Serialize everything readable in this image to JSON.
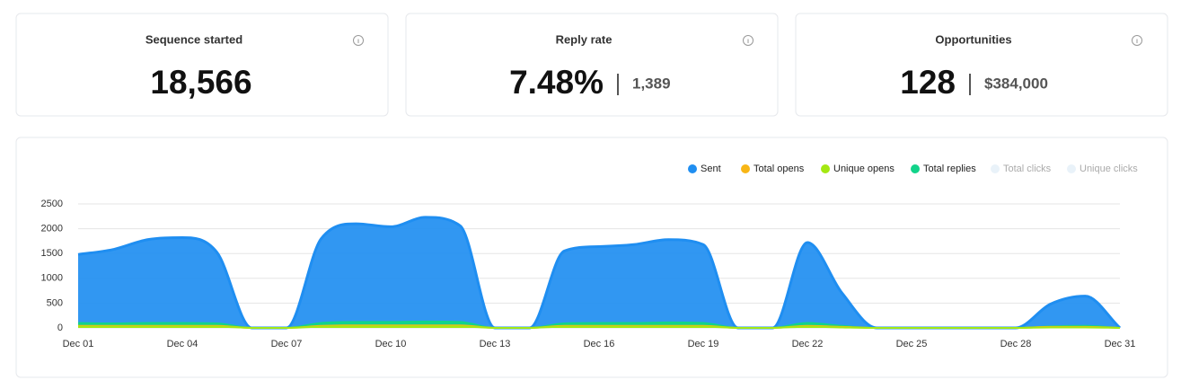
{
  "cards": [
    {
      "title": "Sequence started",
      "value": "18,566"
    },
    {
      "title": "Reply rate",
      "value": "7.48%",
      "secondary": "1,389"
    },
    {
      "title": "Opportunities",
      "value": "128",
      "secondary": "$384,000"
    }
  ],
  "chart_data": {
    "type": "area",
    "categories": [
      "Dec 01",
      null,
      null,
      "Dec 04",
      null,
      null,
      "Dec 07",
      null,
      null,
      "Dec 10",
      null,
      null,
      "Dec 13",
      null,
      null,
      "Dec 16",
      null,
      null,
      "Dec 19",
      null,
      null,
      "Dec 22",
      null,
      null,
      "Dec 25",
      null,
      null,
      "Dec 28",
      null,
      null,
      "Dec 31"
    ],
    "series": [
      {
        "name": "Sent",
        "color": "#1f8ef1",
        "values": [
          1480,
          1580,
          1780,
          1820,
          1520,
          0,
          0,
          1800,
          2100,
          2040,
          2230,
          2060,
          0,
          0,
          1550,
          1640,
          1680,
          1780,
          1680,
          0,
          0,
          1720,
          700,
          0,
          0,
          0,
          0,
          0,
          480,
          640,
          0
        ]
      },
      {
        "name": "Total opens",
        "color": "#f8b616",
        "values": [
          40,
          40,
          40,
          40,
          40,
          0,
          0,
          40,
          50,
          50,
          50,
          50,
          0,
          0,
          40,
          40,
          40,
          40,
          40,
          0,
          0,
          40,
          20,
          0,
          0,
          0,
          0,
          0,
          20,
          20,
          0
        ]
      },
      {
        "name": "Unique opens",
        "color": "#a4e812",
        "values": [
          25,
          25,
          25,
          25,
          25,
          0,
          0,
          25,
          30,
          30,
          30,
          30,
          0,
          0,
          25,
          25,
          25,
          25,
          25,
          0,
          0,
          25,
          10,
          0,
          0,
          0,
          0,
          0,
          10,
          10,
          0
        ]
      },
      {
        "name": "Total replies",
        "color": "#12d38a",
        "values": [
          100,
          90,
          100,
          100,
          90,
          0,
          0,
          100,
          120,
          120,
          130,
          120,
          0,
          0,
          90,
          100,
          100,
          110,
          100,
          0,
          0,
          100,
          40,
          0,
          0,
          0,
          0,
          0,
          30,
          40,
          0
        ]
      },
      {
        "name": "Total clicks",
        "color": "#e9f2f9",
        "visible": false
      },
      {
        "name": "Unique clicks",
        "color": "#e9f2f9",
        "visible": false
      }
    ],
    "ylim": [
      0,
      2500
    ],
    "yticks": [
      0,
      500,
      1000,
      1500,
      2000,
      2500
    ],
    "grid": true,
    "legend": "top-right"
  }
}
